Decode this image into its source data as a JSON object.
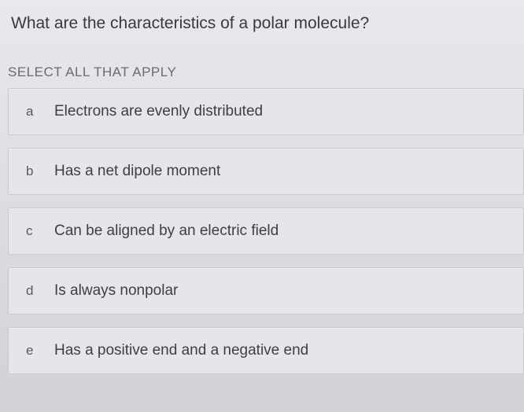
{
  "question": {
    "prompt": "What are the characteristics of a polar molecule?",
    "instruction": "SELECT ALL THAT APPLY"
  },
  "options": [
    {
      "letter": "a",
      "text": "Electrons are evenly distributed"
    },
    {
      "letter": "b",
      "text": "Has a net dipole moment"
    },
    {
      "letter": "c",
      "text": "Can be aligned by an electric field"
    },
    {
      "letter": "d",
      "text": "Is always nonpolar"
    },
    {
      "letter": "e",
      "text": "Has a positive end and a negative end"
    }
  ],
  "styling": {
    "background_gradient_top": "#e8e9ec",
    "background_gradient_bottom": "#d0d2d8",
    "option_background": "#e5e6ea",
    "option_border": "#c8c9ce",
    "question_color": "#3a3a3c",
    "instruction_color": "#6b6b6e",
    "option_text_color": "#3f3f42",
    "option_letter_color": "#5a5a5d",
    "question_fontsize": 21,
    "instruction_fontsize": 17,
    "option_fontsize": 19
  }
}
